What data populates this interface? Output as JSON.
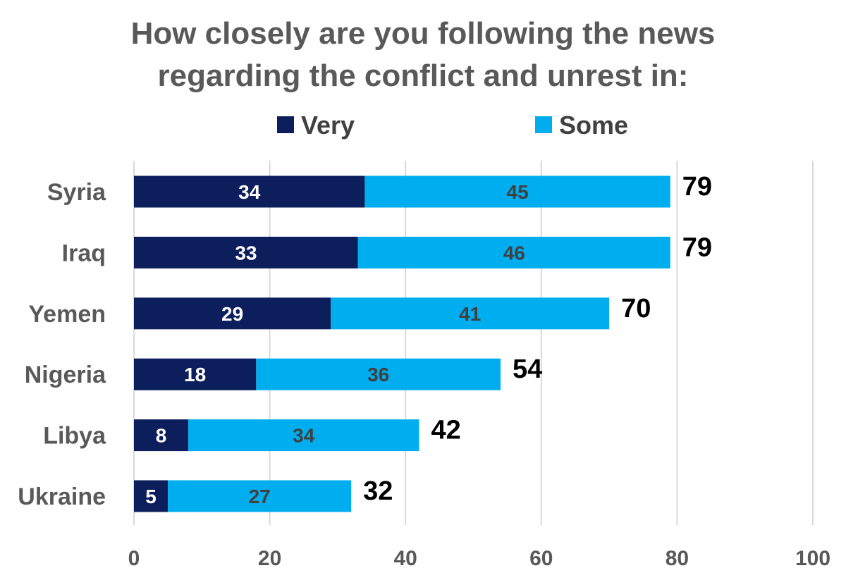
{
  "chart_data": {
    "type": "bar",
    "orientation": "horizontal",
    "stacked": true,
    "title": "How closely are you following the news regarding the conflict and unrest in:",
    "title_lines": [
      "How closely are you following the news",
      "regarding the conflict and unrest in:"
    ],
    "categories": [
      "Syria",
      "Iraq",
      "Yemen",
      "Nigeria",
      "Libya",
      "Ukraine"
    ],
    "series": [
      {
        "name": "Very",
        "color": "#0c1f5c",
        "values": [
          34,
          33,
          29,
          18,
          8,
          5
        ]
      },
      {
        "name": "Some",
        "color": "#00adee",
        "values": [
          45,
          46,
          41,
          36,
          34,
          27
        ]
      }
    ],
    "totals": [
      79,
      79,
      70,
      54,
      42,
      32
    ],
    "xlim": [
      0,
      100
    ],
    "xticks": [
      0,
      20,
      40,
      60,
      80,
      100
    ],
    "grid": true,
    "legend_position": "top"
  }
}
